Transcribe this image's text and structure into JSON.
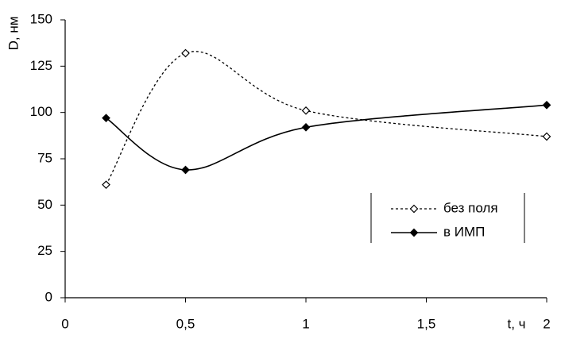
{
  "chart_data": {
    "type": "line",
    "y_label": "D, нм",
    "x_label": "t, ч",
    "xlim": [
      0,
      2
    ],
    "ylim": [
      0,
      150
    ],
    "xticks": [
      0,
      {
        "value": 0.5,
        "label": "0,5"
      },
      1,
      {
        "value": 1.5,
        "label": "1,5"
      },
      2
    ],
    "yticks": [
      0,
      25,
      50,
      75,
      100,
      125,
      150
    ],
    "series": [
      {
        "name": "без поля",
        "color": "#000000",
        "dash": true,
        "marker": "open-diamond",
        "x": [
          0.17,
          0.5,
          1,
          2
        ],
        "values": [
          61,
          132,
          101,
          87
        ]
      },
      {
        "name": "в ИМП",
        "color": "#000000",
        "dash": false,
        "marker": "filled-diamond",
        "x": [
          0.17,
          0.5,
          1,
          2
        ],
        "values": [
          97,
          69,
          92,
          104
        ]
      }
    ]
  }
}
